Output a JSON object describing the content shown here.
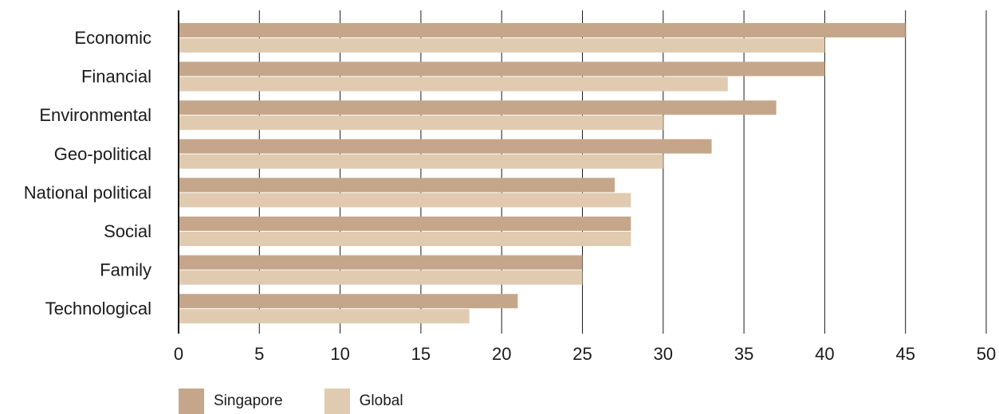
{
  "chart_data": {
    "type": "bar",
    "orientation": "horizontal",
    "categories": [
      "Economic",
      "Financial",
      "Environmental",
      "Geo-political",
      "National political",
      "Social",
      "Family",
      "Technological"
    ],
    "series": [
      {
        "name": "Singapore",
        "color": "#c6a68a",
        "values": [
          45,
          40,
          37,
          33,
          27,
          28,
          25,
          21
        ]
      },
      {
        "name": "Global",
        "color": "#e0cbb0",
        "values": [
          40,
          34,
          30,
          30,
          28,
          28,
          25,
          18
        ]
      }
    ],
    "xlim": [
      0,
      50
    ],
    "xticks": [
      "0",
      "5",
      "10",
      "15",
      "20",
      "25",
      "30",
      "35",
      "40",
      "45",
      "50"
    ],
    "grid": true,
    "legend_position": "bottom-left"
  }
}
